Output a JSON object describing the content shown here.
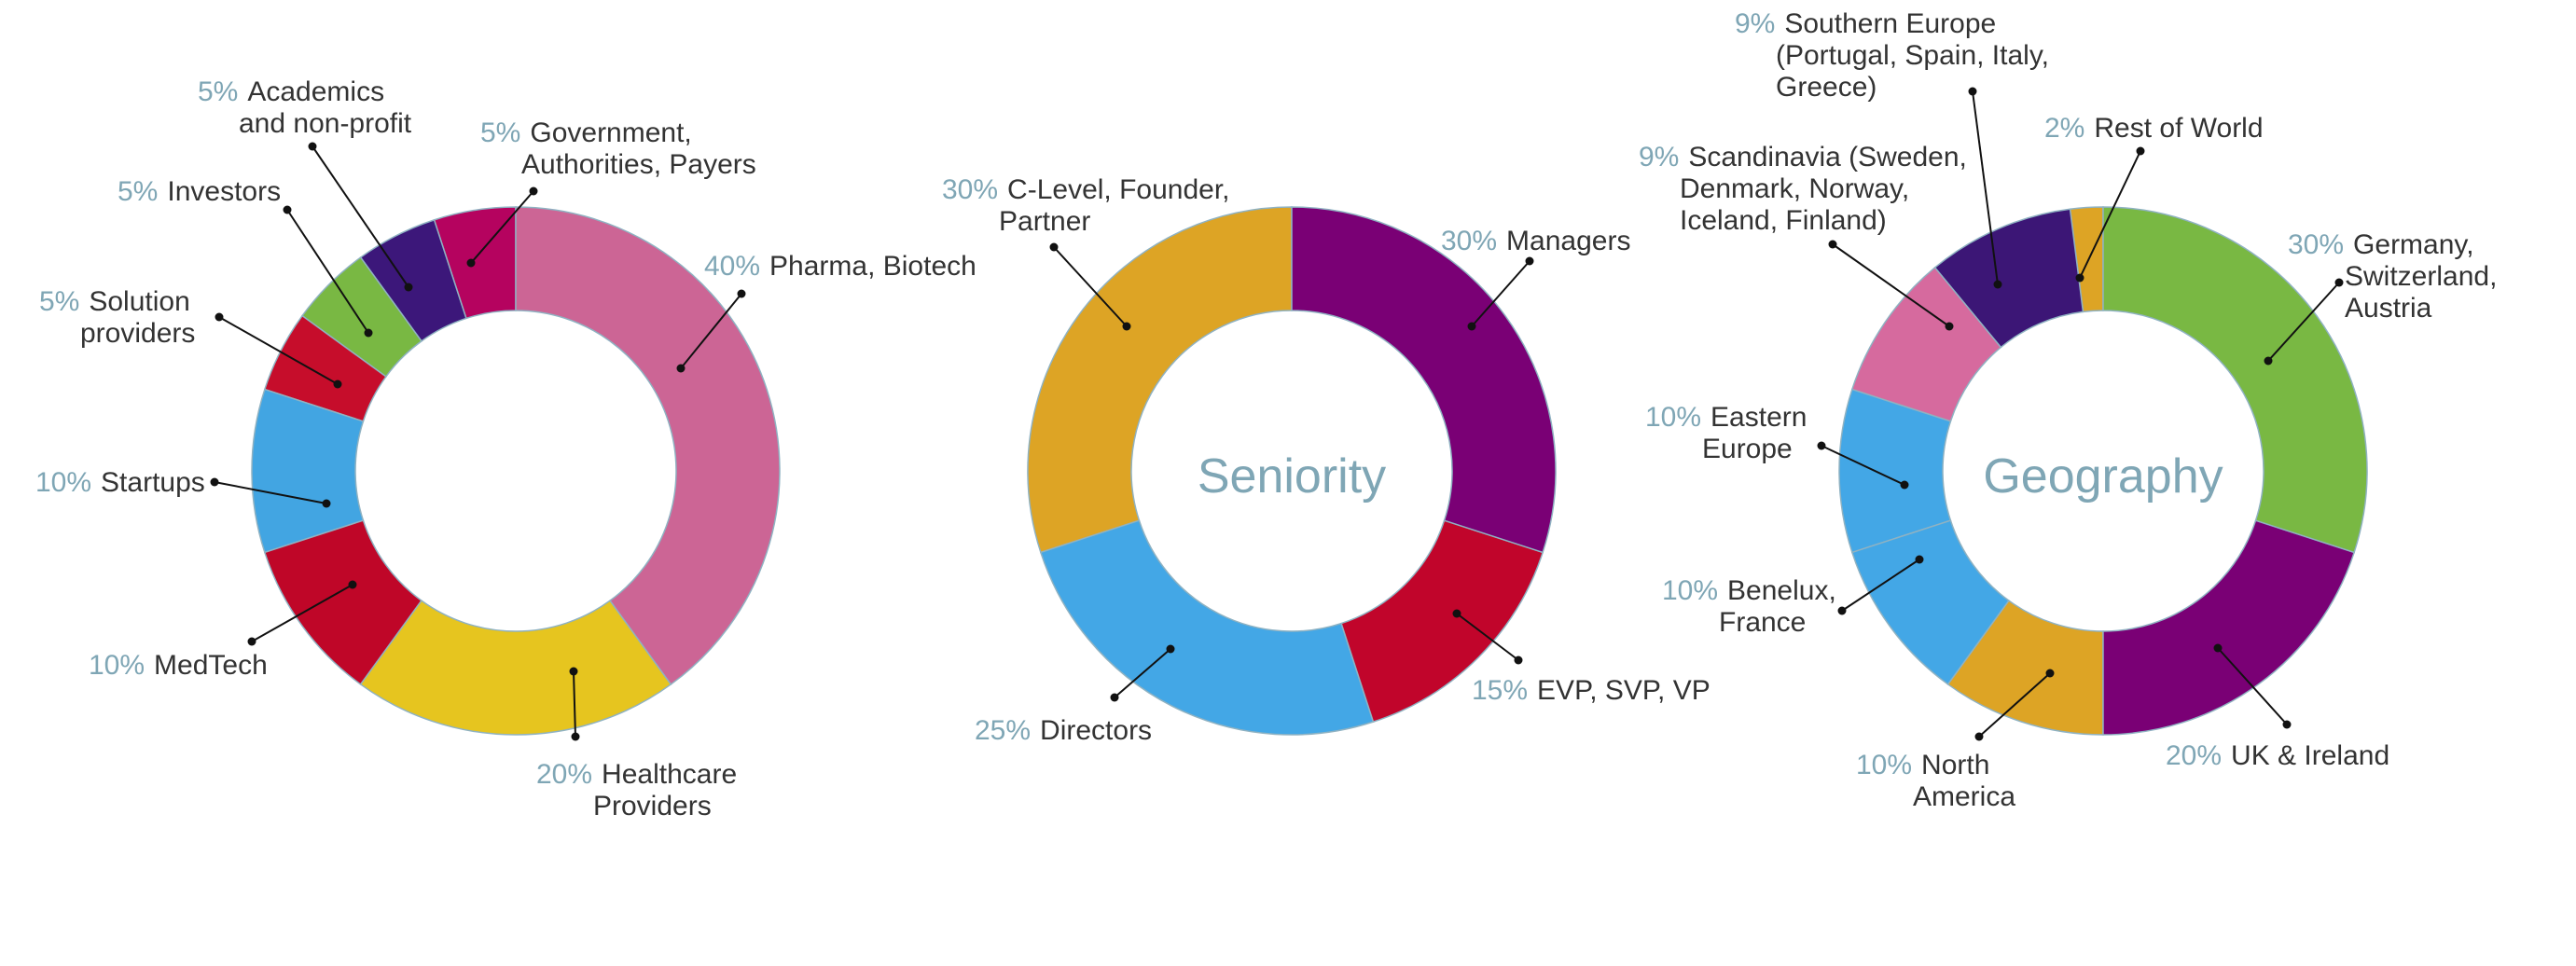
{
  "chart_data": [
    {
      "type": "pie",
      "donut": true,
      "title": "",
      "slices": [
        {
          "category": "Pharma, Biotech",
          "value": 40,
          "pct_label": "40%",
          "color": "#cc6595"
        },
        {
          "category": "Healthcare Providers",
          "value": 20,
          "pct_label": "20%",
          "color": "#e6c51f"
        },
        {
          "category": "MedTech",
          "value": 10,
          "pct_label": "10%",
          "color": "#bf0628"
        },
        {
          "category": "Startups",
          "value": 10,
          "pct_label": "10%",
          "color": "#42a5e2"
        },
        {
          "category": "Solution providers",
          "value": 5,
          "pct_label": "5%",
          "color": "#c60d2b"
        },
        {
          "category": "Investors",
          "value": 5,
          "pct_label": "5%",
          "color": "#79b843"
        },
        {
          "category": "Academics and non-profit",
          "value": 5,
          "pct_label": "5%",
          "color": "#3c177a"
        },
        {
          "category": "Government, Authorities, Payers",
          "value": 5,
          "pct_label": "5%",
          "color": "#b5035f"
        }
      ]
    },
    {
      "type": "pie",
      "donut": true,
      "title": "Seniority",
      "slices": [
        {
          "category": "Managers",
          "value": 30,
          "pct_label": "30%",
          "color": "#7a0075"
        },
        {
          "category": "EVP, SVP, VP",
          "value": 15,
          "pct_label": "15%",
          "color": "#c1052b"
        },
        {
          "category": "Directors",
          "value": 25,
          "pct_label": "25%",
          "color": "#43a7e6"
        },
        {
          "category": "C-Level, Founder, Partner",
          "value": 30,
          "pct_label": "30%",
          "color": "#dda425"
        }
      ]
    },
    {
      "type": "pie",
      "donut": true,
      "title": "Geography",
      "slices": [
        {
          "category": "Germany, Switzerland, Austria",
          "value": 30,
          "pct_label": "30%",
          "color": "#79b843"
        },
        {
          "category": "UK & Ireland",
          "value": 20,
          "pct_label": "20%",
          "color": "#7a0075"
        },
        {
          "category": "North America",
          "value": 10,
          "pct_label": "10%",
          "color": "#dda425"
        },
        {
          "category": "Benelux, France",
          "value": 10,
          "pct_label": "10%",
          "color": "#43a7e6"
        },
        {
          "category": "Eastern Europe",
          "value": 10,
          "pct_label": "10%",
          "color": "#43a7e6"
        },
        {
          "category": "Scandinavia (Sweden, Denmark, Norway, Iceland, Finland)",
          "value": 9,
          "pct_label": "9%",
          "color": "#d66a9e"
        },
        {
          "category": "Southern Europe (Portugal, Spain, Italy, Greece)",
          "value": 9,
          "pct_label": "9%",
          "color": "#3c1676"
        },
        {
          "category": "Rest of World",
          "value": 2,
          "pct_label": "2%",
          "color": "#dda425"
        }
      ]
    }
  ],
  "labels": [
    [
      {
        "pct": "40%",
        "lines": [
          "Pharma, Biotech"
        ]
      },
      {
        "pct": "20%",
        "lines": [
          "Healthcare",
          "Providers"
        ]
      },
      {
        "pct": "10%",
        "lines": [
          "MedTech"
        ]
      },
      {
        "pct": "10%",
        "lines": [
          "Startups"
        ]
      },
      {
        "pct": "5%",
        "lines": [
          "Solution",
          "providers"
        ]
      },
      {
        "pct": "5%",
        "lines": [
          "Investors"
        ]
      },
      {
        "pct": "5%",
        "lines": [
          "Academics",
          "and non-profit"
        ]
      },
      {
        "pct": "5%",
        "lines": [
          "Government,",
          "Authorities, Payers"
        ]
      }
    ],
    [
      {
        "pct": "30%",
        "lines": [
          "Managers"
        ]
      },
      {
        "pct": "15%",
        "lines": [
          "EVP, SVP, VP"
        ]
      },
      {
        "pct": "25%",
        "lines": [
          "Directors"
        ]
      },
      {
        "pct": "30%",
        "lines": [
          "C-Level, Founder,",
          "Partner"
        ]
      }
    ],
    [
      {
        "pct": "30%",
        "lines": [
          "Germany,",
          "Switzerland,",
          "Austria"
        ]
      },
      {
        "pct": "20%",
        "lines": [
          "UK & Ireland"
        ]
      },
      {
        "pct": "10%",
        "lines": [
          "North",
          "America"
        ]
      },
      {
        "pct": "10%",
        "lines": [
          "Benelux,",
          "France"
        ]
      },
      {
        "pct": "10%",
        "lines": [
          "Eastern",
          "Europe"
        ]
      },
      {
        "pct": "9%",
        "lines": [
          "Scandinavia (Sweden,",
          "Denmark, Norway,",
          "Iceland, Finland)"
        ]
      },
      {
        "pct": "9%",
        "lines": [
          "Southern Europe",
          "(Portugal, Spain, Italy,",
          "Greece)"
        ]
      },
      {
        "pct": "2%",
        "lines": [
          "Rest of World"
        ]
      }
    ]
  ],
  "center_labels": [
    "",
    "Seniority",
    "Geography"
  ]
}
